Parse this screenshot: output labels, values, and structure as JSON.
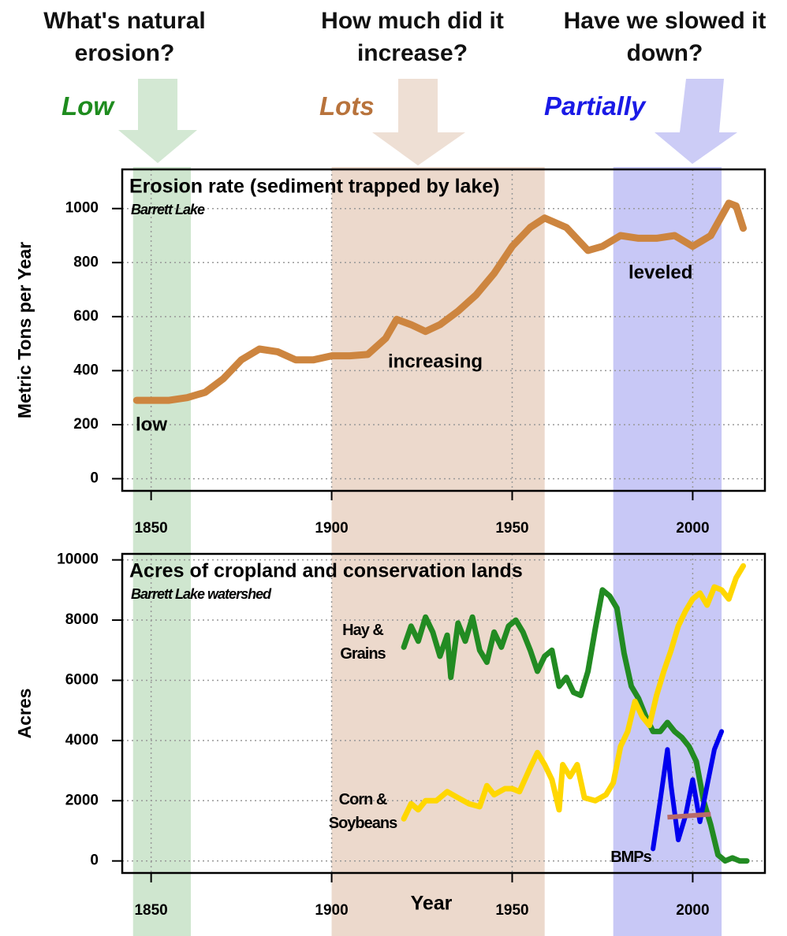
{
  "header": {
    "questions": [
      "What's natural erosion?",
      "How much did it increase?",
      "Have we slowed it down?"
    ],
    "answers": [
      {
        "text": "Low",
        "color": "#1e8c1e"
      },
      {
        "text": "Lots",
        "color": "#b8733c"
      },
      {
        "text": "Partially",
        "color": "#1a1ae6"
      }
    ]
  },
  "bands": [
    {
      "start": 1845,
      "end": 1861,
      "color": "#cfe6cf"
    },
    {
      "start": 1900,
      "end": 1959,
      "color": "#ecd9cc"
    },
    {
      "start": 1978,
      "end": 2008,
      "color": "#c8c8f6"
    }
  ],
  "chart_data": [
    {
      "type": "line",
      "title": "Erosion rate (sediment trapped by lake)",
      "subtitle": "Barrett Lake",
      "ylabel": "Metric Tons per Year",
      "xlim": [
        1842,
        2020
      ],
      "ylim": [
        -45,
        1145
      ],
      "xticks": [
        1850,
        1900,
        1950,
        2000
      ],
      "yticks": [
        0,
        200,
        400,
        600,
        800,
        1000
      ],
      "grid": true,
      "series": [
        {
          "color": "#cd853f",
          "x": [
            1846,
            1850,
            1855,
            1860,
            1865,
            1870,
            1875,
            1880,
            1885,
            1890,
            1895,
            1900,
            1905,
            1910,
            1915,
            1918,
            1922,
            1926,
            1930,
            1935,
            1940,
            1945,
            1950,
            1955,
            1959,
            1965,
            1971,
            1975,
            1980,
            1985,
            1990,
            1995,
            2000,
            2005,
            2010,
            2012,
            2014
          ],
          "values": [
            290,
            290,
            290,
            300,
            320,
            370,
            440,
            480,
            470,
            440,
            440,
            455,
            455,
            460,
            520,
            590,
            570,
            545,
            570,
            620,
            680,
            760,
            860,
            930,
            965,
            930,
            845,
            860,
            900,
            890,
            890,
            900,
            860,
            900,
            1020,
            1010,
            927
          ]
        }
      ],
      "annotations": [
        "low",
        "increasing",
        "leveled"
      ]
    },
    {
      "type": "line",
      "title": "Acres of cropland and conservation lands",
      "subtitle": "Barrett Lake watershed",
      "ylabel": "Acres",
      "xlabel": "Year",
      "xlim": [
        1842,
        2020
      ],
      "ylim": [
        -400,
        10200
      ],
      "xticks": [
        1850,
        1900,
        1950,
        2000
      ],
      "yticks": [
        0,
        2000,
        4000,
        6000,
        8000,
        10000
      ],
      "grid": true,
      "series": [
        {
          "name": "Hay & Grains",
          "color": "#228b22",
          "x": [
            1920,
            1922,
            1924,
            1926,
            1928,
            1930,
            1932,
            1933,
            1935,
            1937,
            1939,
            1941,
            1943,
            1945,
            1947,
            1949,
            1951,
            1953,
            1955,
            1957,
            1959,
            1961,
            1963,
            1965,
            1967,
            1969,
            1971,
            1973,
            1975,
            1977,
            1979,
            1981,
            1983,
            1985,
            1987,
            1989,
            1991,
            1993,
            1995,
            1997,
            1999,
            2001,
            2003,
            2005,
            2007,
            2009,
            2011,
            2013,
            2015
          ],
          "values": [
            7100,
            7800,
            7300,
            8100,
            7600,
            6800,
            7500,
            6100,
            7900,
            7300,
            8100,
            7000,
            6600,
            7600,
            7100,
            7800,
            8000,
            7600,
            7000,
            6300,
            6800,
            7000,
            5800,
            6100,
            5600,
            5500,
            6300,
            7700,
            9000,
            8800,
            8400,
            6900,
            5800,
            5400,
            4800,
            4300,
            4300,
            4600,
            4300,
            4100,
            3800,
            3300,
            2000,
            1200,
            200,
            0,
            100,
            0,
            0
          ]
        },
        {
          "name": "Corn & Soybeans",
          "color": "#ffd700",
          "x": [
            1920,
            1922,
            1924,
            1926,
            1929,
            1932,
            1935,
            1938,
            1941,
            1943,
            1945,
            1948,
            1950,
            1952,
            1955,
            1957,
            1959,
            1961,
            1963,
            1964,
            1966,
            1968,
            1970,
            1973,
            1976,
            1978,
            1980,
            1982,
            1984,
            1986,
            1988,
            1990,
            1992,
            1994,
            1996,
            1998,
            2000,
            2002,
            2004,
            2006,
            2008,
            2010,
            2012,
            2014
          ],
          "values": [
            1400,
            1900,
            1700,
            2000,
            2000,
            2300,
            2100,
            1900,
            1800,
            2500,
            2200,
            2400,
            2400,
            2300,
            3100,
            3600,
            3200,
            2700,
            1700,
            3200,
            2800,
            3200,
            2100,
            2000,
            2200,
            2600,
            3800,
            4300,
            5300,
            4800,
            4500,
            5500,
            6300,
            7000,
            7800,
            8300,
            8700,
            8900,
            8500,
            9100,
            9000,
            8700,
            9400,
            9800
          ]
        },
        {
          "name": "BMPs",
          "color": "#0000ee",
          "x": [
            1989,
            1991,
            1993,
            1994,
            1996,
            1998,
            2000,
            2002,
            2004,
            2006,
            2008
          ],
          "values": [
            400,
            2000,
            3700,
            2500,
            700,
            1500,
            2700,
            1300,
            2500,
            3700,
            4300
          ]
        },
        {
          "color": "#b86a6a",
          "x": [
            1993,
            2005
          ],
          "values": [
            1450,
            1550
          ]
        }
      ]
    }
  ]
}
